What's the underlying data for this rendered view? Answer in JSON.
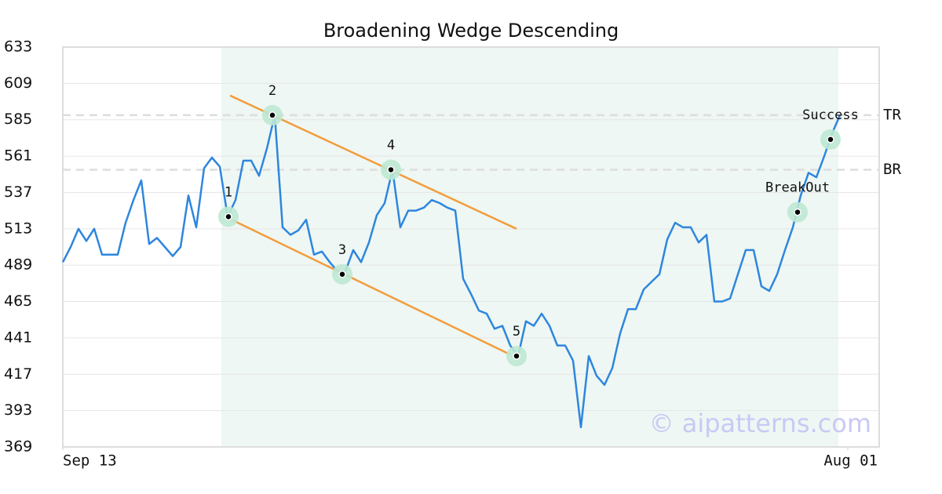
{
  "chart_data": {
    "type": "line",
    "title": "Broadening Wedge Descending",
    "values": [
      491,
      501,
      513,
      505,
      513,
      496,
      496,
      496,
      517,
      532,
      545,
      503,
      507,
      501,
      495,
      501,
      535,
      514,
      553,
      560,
      554,
      521,
      532,
      558,
      558,
      548,
      566,
      588,
      514,
      509,
      512,
      519,
      496,
      498,
      491,
      485,
      485,
      499,
      491,
      504,
      522,
      530,
      552,
      514,
      525,
      525,
      527,
      532,
      530,
      527,
      525,
      480,
      470,
      459,
      457,
      447,
      449,
      436,
      429,
      452,
      449,
      457,
      449,
      436,
      436,
      426,
      382,
      429,
      416,
      410,
      421,
      444,
      460,
      460,
      473,
      478,
      483,
      506,
      517,
      514,
      514,
      504,
      509,
      465,
      465,
      467,
      483,
      499,
      499,
      475,
      472,
      483,
      499,
      514,
      535,
      550,
      547,
      561,
      576,
      588
    ],
    "color": "#2e86de",
    "xlim": [
      0,
      104
    ],
    "xticks": [
      {
        "value": 0,
        "label": "Sep 13"
      },
      {
        "value": 100,
        "label": "Aug 01"
      }
    ],
    "ylim": [
      369,
      633
    ],
    "yticks": [
      369,
      393,
      417,
      441,
      465,
      489,
      513,
      537,
      561,
      585,
      609,
      633
    ],
    "grid": true,
    "highlight": [
      20.2,
      98.8
    ],
    "highlight_color": "#eef7f3",
    "trendlines": [
      {
        "x": [
          21.3,
          57.8
        ],
        "y": [
          601,
          513
        ],
        "color": "#f39c3c"
      },
      {
        "x": [
          21.1,
          57
        ],
        "y": [
          520,
          430
        ],
        "color": "#f39c3c"
      }
    ],
    "levels": [
      {
        "label": "TR",
        "value": 588
      },
      {
        "label": "BR",
        "value": 552
      }
    ],
    "points": [
      {
        "label": "1",
        "x": 21.1,
        "y": 521
      },
      {
        "label": "2",
        "x": 26.7,
        "y": 588
      },
      {
        "label": "3",
        "x": 35.6,
        "y": 483
      },
      {
        "label": "4",
        "x": 41.8,
        "y": 552
      },
      {
        "label": "5",
        "x": 57.8,
        "y": 429
      },
      {
        "label": "BreakOut",
        "x": 93.6,
        "y": 524
      },
      {
        "label": "Success",
        "x": 97.8,
        "y": 572
      }
    ],
    "point_color": "#bde8d3",
    "watermark": "© aipatterns.com"
  }
}
